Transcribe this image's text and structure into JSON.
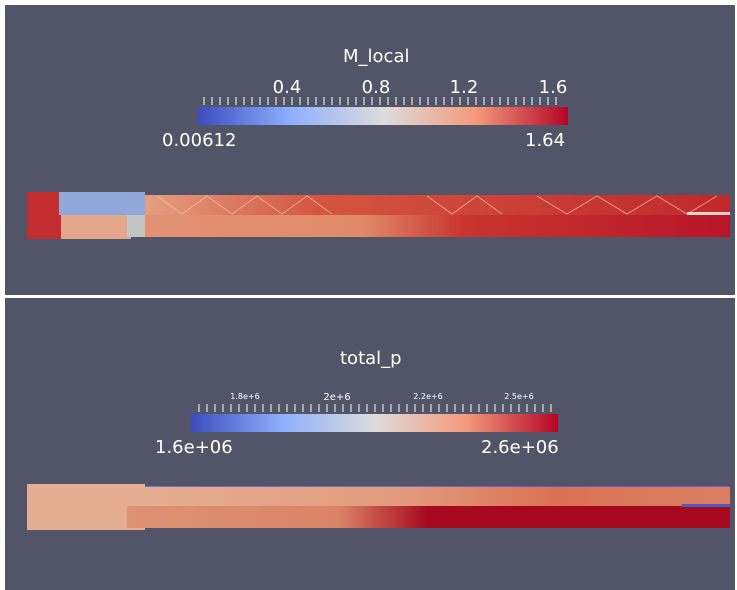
{
  "panels": [
    {
      "title": "M_local",
      "colorbar": {
        "ticks": [
          "0.4",
          "0.8",
          "1.2",
          "1.6"
        ],
        "min_label": "0.00612",
        "max_label": "1.64",
        "colors": [
          "#3b4cc0",
          "#dddddd",
          "#b40426"
        ]
      }
    },
    {
      "title": "total_p",
      "colorbar": {
        "ticks": [
          "1.8e+6",
          "2e+6",
          "2.2e+6",
          "2.5e+6"
        ],
        "min_label": "1.6e+06",
        "max_label": "2.6e+06",
        "colors": [
          "#3b4cc0",
          "#dddddd",
          "#b40426"
        ]
      }
    }
  ],
  "background": "#525468",
  "separator": "#ffffff"
}
